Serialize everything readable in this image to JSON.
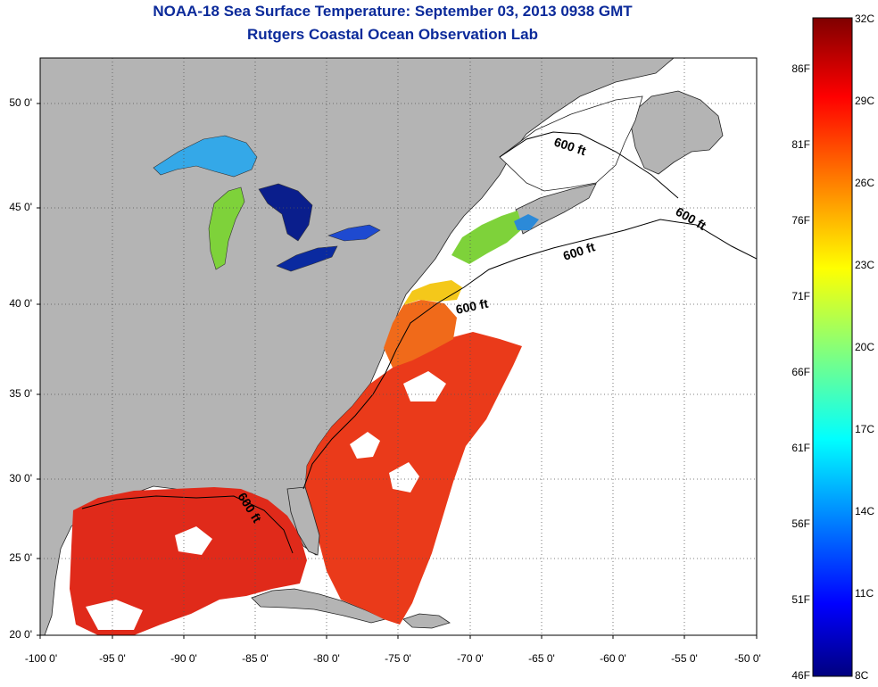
{
  "title": "NOAA-18 Sea Surface Temperature:  September 03, 2013 0938 GMT",
  "subtitle": "Rutgers Coastal Ocean Observation Lab",
  "lat_ticks": [
    "50 0'",
    "45 0'",
    "40 0'",
    "35 0'",
    "30 0'",
    "25 0'",
    "20 0'"
  ],
  "lon_ticks": [
    "-100 0'",
    "-95 0'",
    "-90 0'",
    "-85 0'",
    "-80 0'",
    "-75 0'",
    "-70 0'",
    "-65 0'",
    "-60 0'",
    "-55 0'",
    "-50 0'"
  ],
  "isobath_label": "600 ft",
  "colorbar": {
    "celsius_labels": [
      "32C",
      "29C",
      "26C",
      "23C",
      "20C",
      "17C",
      "14C",
      "11C",
      "8C"
    ],
    "fahrenheit_labels": [
      "86F",
      "81F",
      "76F",
      "71F",
      "66F",
      "61F",
      "56F",
      "51F",
      "46F"
    ],
    "range_c": [
      8,
      32
    ],
    "colormap": "jet"
  },
  "colors": {
    "land": "#b4b4b4",
    "no_data": "#ffffff",
    "title": "#0b2a9a",
    "warm": "#e8281a",
    "orange": "#f06a1a",
    "yellow": "#f4c81a",
    "green": "#7ed23a",
    "cyan": "#22c8e0",
    "blue": "#1e5adc",
    "navy": "#0a1e8c"
  }
}
